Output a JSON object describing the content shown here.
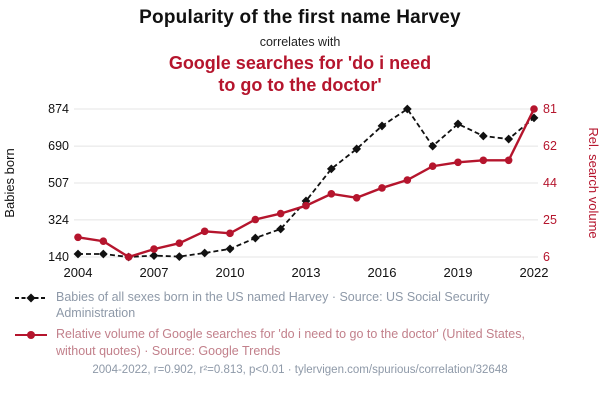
{
  "header": {
    "title": "Popularity of the first name Harvey",
    "connector": "correlates with",
    "subtitle": "Google searches for 'do i need to go to the doctor'"
  },
  "chart_data": {
    "type": "line",
    "x": [
      2004,
      2005,
      2006,
      2007,
      2008,
      2009,
      2010,
      2011,
      2012,
      2013,
      2014,
      2015,
      2016,
      2017,
      2018,
      2019,
      2020,
      2021,
      2022
    ],
    "x_ticks": [
      2004,
      2007,
      2010,
      2013,
      2016,
      2019,
      2022
    ],
    "grid": true,
    "left_axis": {
      "label": "Babies born",
      "ticks": [
        874,
        690,
        507,
        324,
        140
      ],
      "range": [
        140,
        874
      ],
      "color": "#111111"
    },
    "right_axis": {
      "label": "Rel. search volume",
      "ticks": [
        81,
        62,
        44,
        25,
        6
      ],
      "range": [
        6,
        81
      ],
      "color": "#b5152d"
    },
    "series": [
      {
        "name": "Babies of all sexes born in the US named Harvey",
        "axis": "left",
        "color": "#111111",
        "marker": "diamond",
        "line_style": "dashed",
        "values": [
          155,
          155,
          140,
          147,
          142,
          160,
          180,
          234,
          279,
          418,
          577,
          676,
          790,
          874,
          690,
          800,
          740,
          725,
          830
        ]
      },
      {
        "name": "Relative volume of Google searches for 'do i need to go to the doctor'",
        "axis": "right",
        "color": "#b5152d",
        "marker": "circle",
        "line_style": "solid",
        "values": [
          16,
          14,
          6,
          10,
          13,
          19,
          18,
          25,
          28,
          32,
          38,
          36,
          41,
          45,
          52,
          54,
          55,
          55,
          81
        ]
      }
    ]
  },
  "legend": [
    {
      "text": "Babies of all sexes born in the US named Harvey · Source: US Social Security Administration",
      "color": "#8e99a8"
    },
    {
      "text": "Relative volume of Google searches for 'do i need to go to the doctor' (United States, without quotes) · Source: Google Trends",
      "color": "#c2808b"
    }
  ],
  "footer": {
    "text": "2004-2022, r=0.902, r²=0.813, p<0.01 · tylervigen.com/spurious/correlation/32648"
  }
}
